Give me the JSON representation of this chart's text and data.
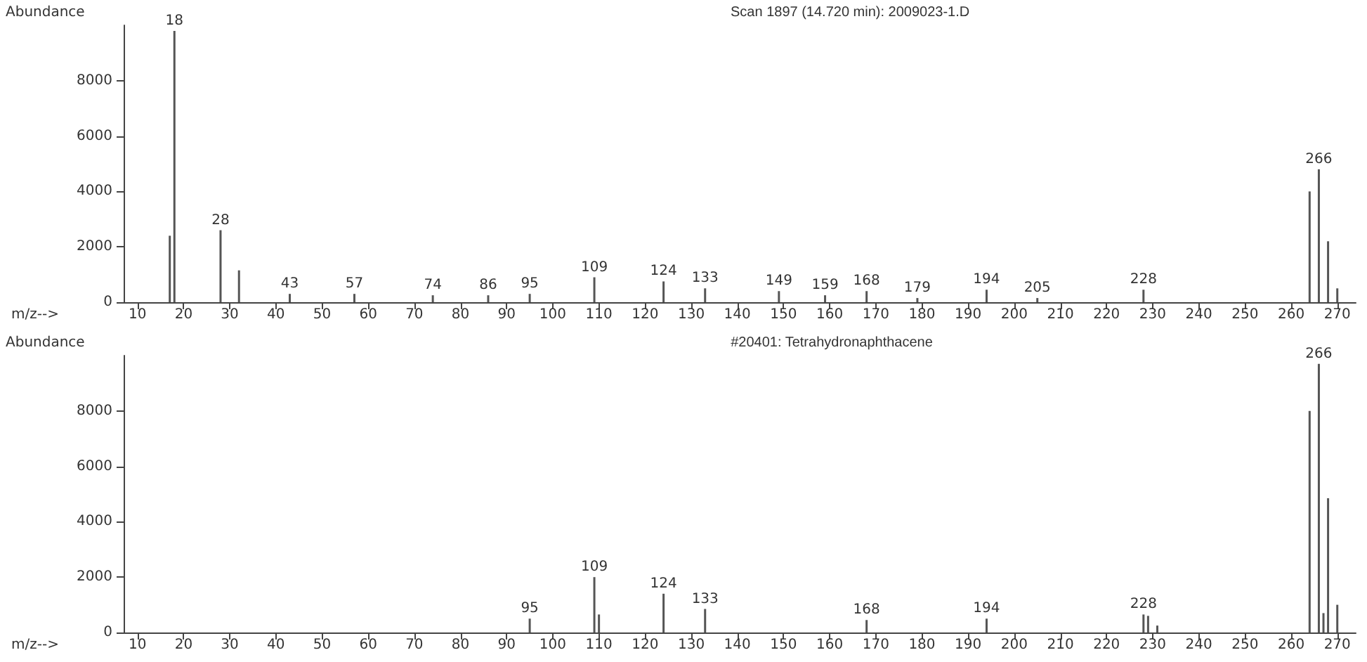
{
  "chart_data": [
    {
      "type": "bar",
      "title": "Scan 1897 (14.720 min): 2009023-1.D",
      "xlabel": "m/z-->",
      "ylabel": "Abundance",
      "x": [
        17,
        18,
        28,
        32,
        43,
        57,
        74,
        86,
        95,
        109,
        124,
        133,
        149,
        159,
        168,
        179,
        194,
        205,
        228,
        264,
        266,
        268,
        270
      ],
      "series": [
        {
          "color": "#555555",
          "values": [
            2400,
            9800,
            2600,
            1150,
            300,
            300,
            250,
            250,
            300,
            900,
            750,
            500,
            400,
            250,
            400,
            150,
            450,
            150,
            450,
            4000,
            4800,
            2200,
            500
          ]
        }
      ],
      "annotations": [
        {
          "text": "18",
          "x": 18,
          "y": 9800
        },
        {
          "text": "28",
          "x": 28,
          "y": 2600
        },
        {
          "text": "43",
          "x": 43,
          "y": 300
        },
        {
          "text": "57",
          "x": 57,
          "y": 300
        },
        {
          "text": "74",
          "x": 74,
          "y": 250
        },
        {
          "text": "86",
          "x": 86,
          "y": 250
        },
        {
          "text": "95",
          "x": 95,
          "y": 300
        },
        {
          "text": "109",
          "x": 109,
          "y": 900
        },
        {
          "text": "124",
          "x": 124,
          "y": 750
        },
        {
          "text": "133",
          "x": 133,
          "y": 500
        },
        {
          "text": "149",
          "x": 149,
          "y": 400
        },
        {
          "text": "159",
          "x": 159,
          "y": 250
        },
        {
          "text": "168",
          "x": 168,
          "y": 400
        },
        {
          "text": "179",
          "x": 179,
          "y": 150
        },
        {
          "text": "194",
          "x": 194,
          "y": 450
        },
        {
          "text": "205",
          "x": 205,
          "y": 150
        },
        {
          "text": "228",
          "x": 228,
          "y": 450
        },
        {
          "text": "266",
          "x": 266,
          "y": 4800
        }
      ],
      "xlim": [
        7,
        274
      ],
      "xticks": [
        10,
        20,
        30,
        40,
        50,
        60,
        70,
        80,
        90,
        100,
        110,
        120,
        130,
        140,
        150,
        160,
        170,
        180,
        190,
        200,
        210,
        220,
        230,
        240,
        250,
        260,
        270
      ],
      "ylim": [
        0,
        10000
      ],
      "yticks": [
        0,
        2000,
        4000,
        6000,
        8000
      ]
    },
    {
      "type": "bar",
      "title": "#20401: Tetrahydronaphthacene",
      "xlabel": "m/z-->",
      "ylabel": "Abundance",
      "x": [
        95,
        109,
        110,
        124,
        133,
        168,
        194,
        228,
        229,
        231,
        264,
        266,
        267,
        268,
        270
      ],
      "series": [
        {
          "color": "#555555",
          "values": [
            500,
            2000,
            650,
            1400,
            850,
            450,
            500,
            650,
            600,
            250,
            8000,
            9700,
            700,
            4850,
            1000
          ]
        }
      ],
      "annotations": [
        {
          "text": "95",
          "x": 95,
          "y": 500
        },
        {
          "text": "109",
          "x": 109,
          "y": 2000
        },
        {
          "text": "124",
          "x": 124,
          "y": 1400
        },
        {
          "text": "133",
          "x": 133,
          "y": 850
        },
        {
          "text": "168",
          "x": 168,
          "y": 450
        },
        {
          "text": "194",
          "x": 194,
          "y": 500
        },
        {
          "text": "228",
          "x": 228,
          "y": 650
        },
        {
          "text": "266",
          "x": 266,
          "y": 9700
        }
      ],
      "xlim": [
        7,
        274
      ],
      "xticks": [
        10,
        20,
        30,
        40,
        50,
        60,
        70,
        80,
        90,
        100,
        110,
        120,
        130,
        140,
        150,
        160,
        170,
        180,
        190,
        200,
        210,
        220,
        230,
        240,
        250,
        260,
        270
      ],
      "ylim": [
        0,
        10000
      ],
      "yticks": [
        0,
        2000,
        4000,
        6000,
        8000
      ]
    }
  ]
}
